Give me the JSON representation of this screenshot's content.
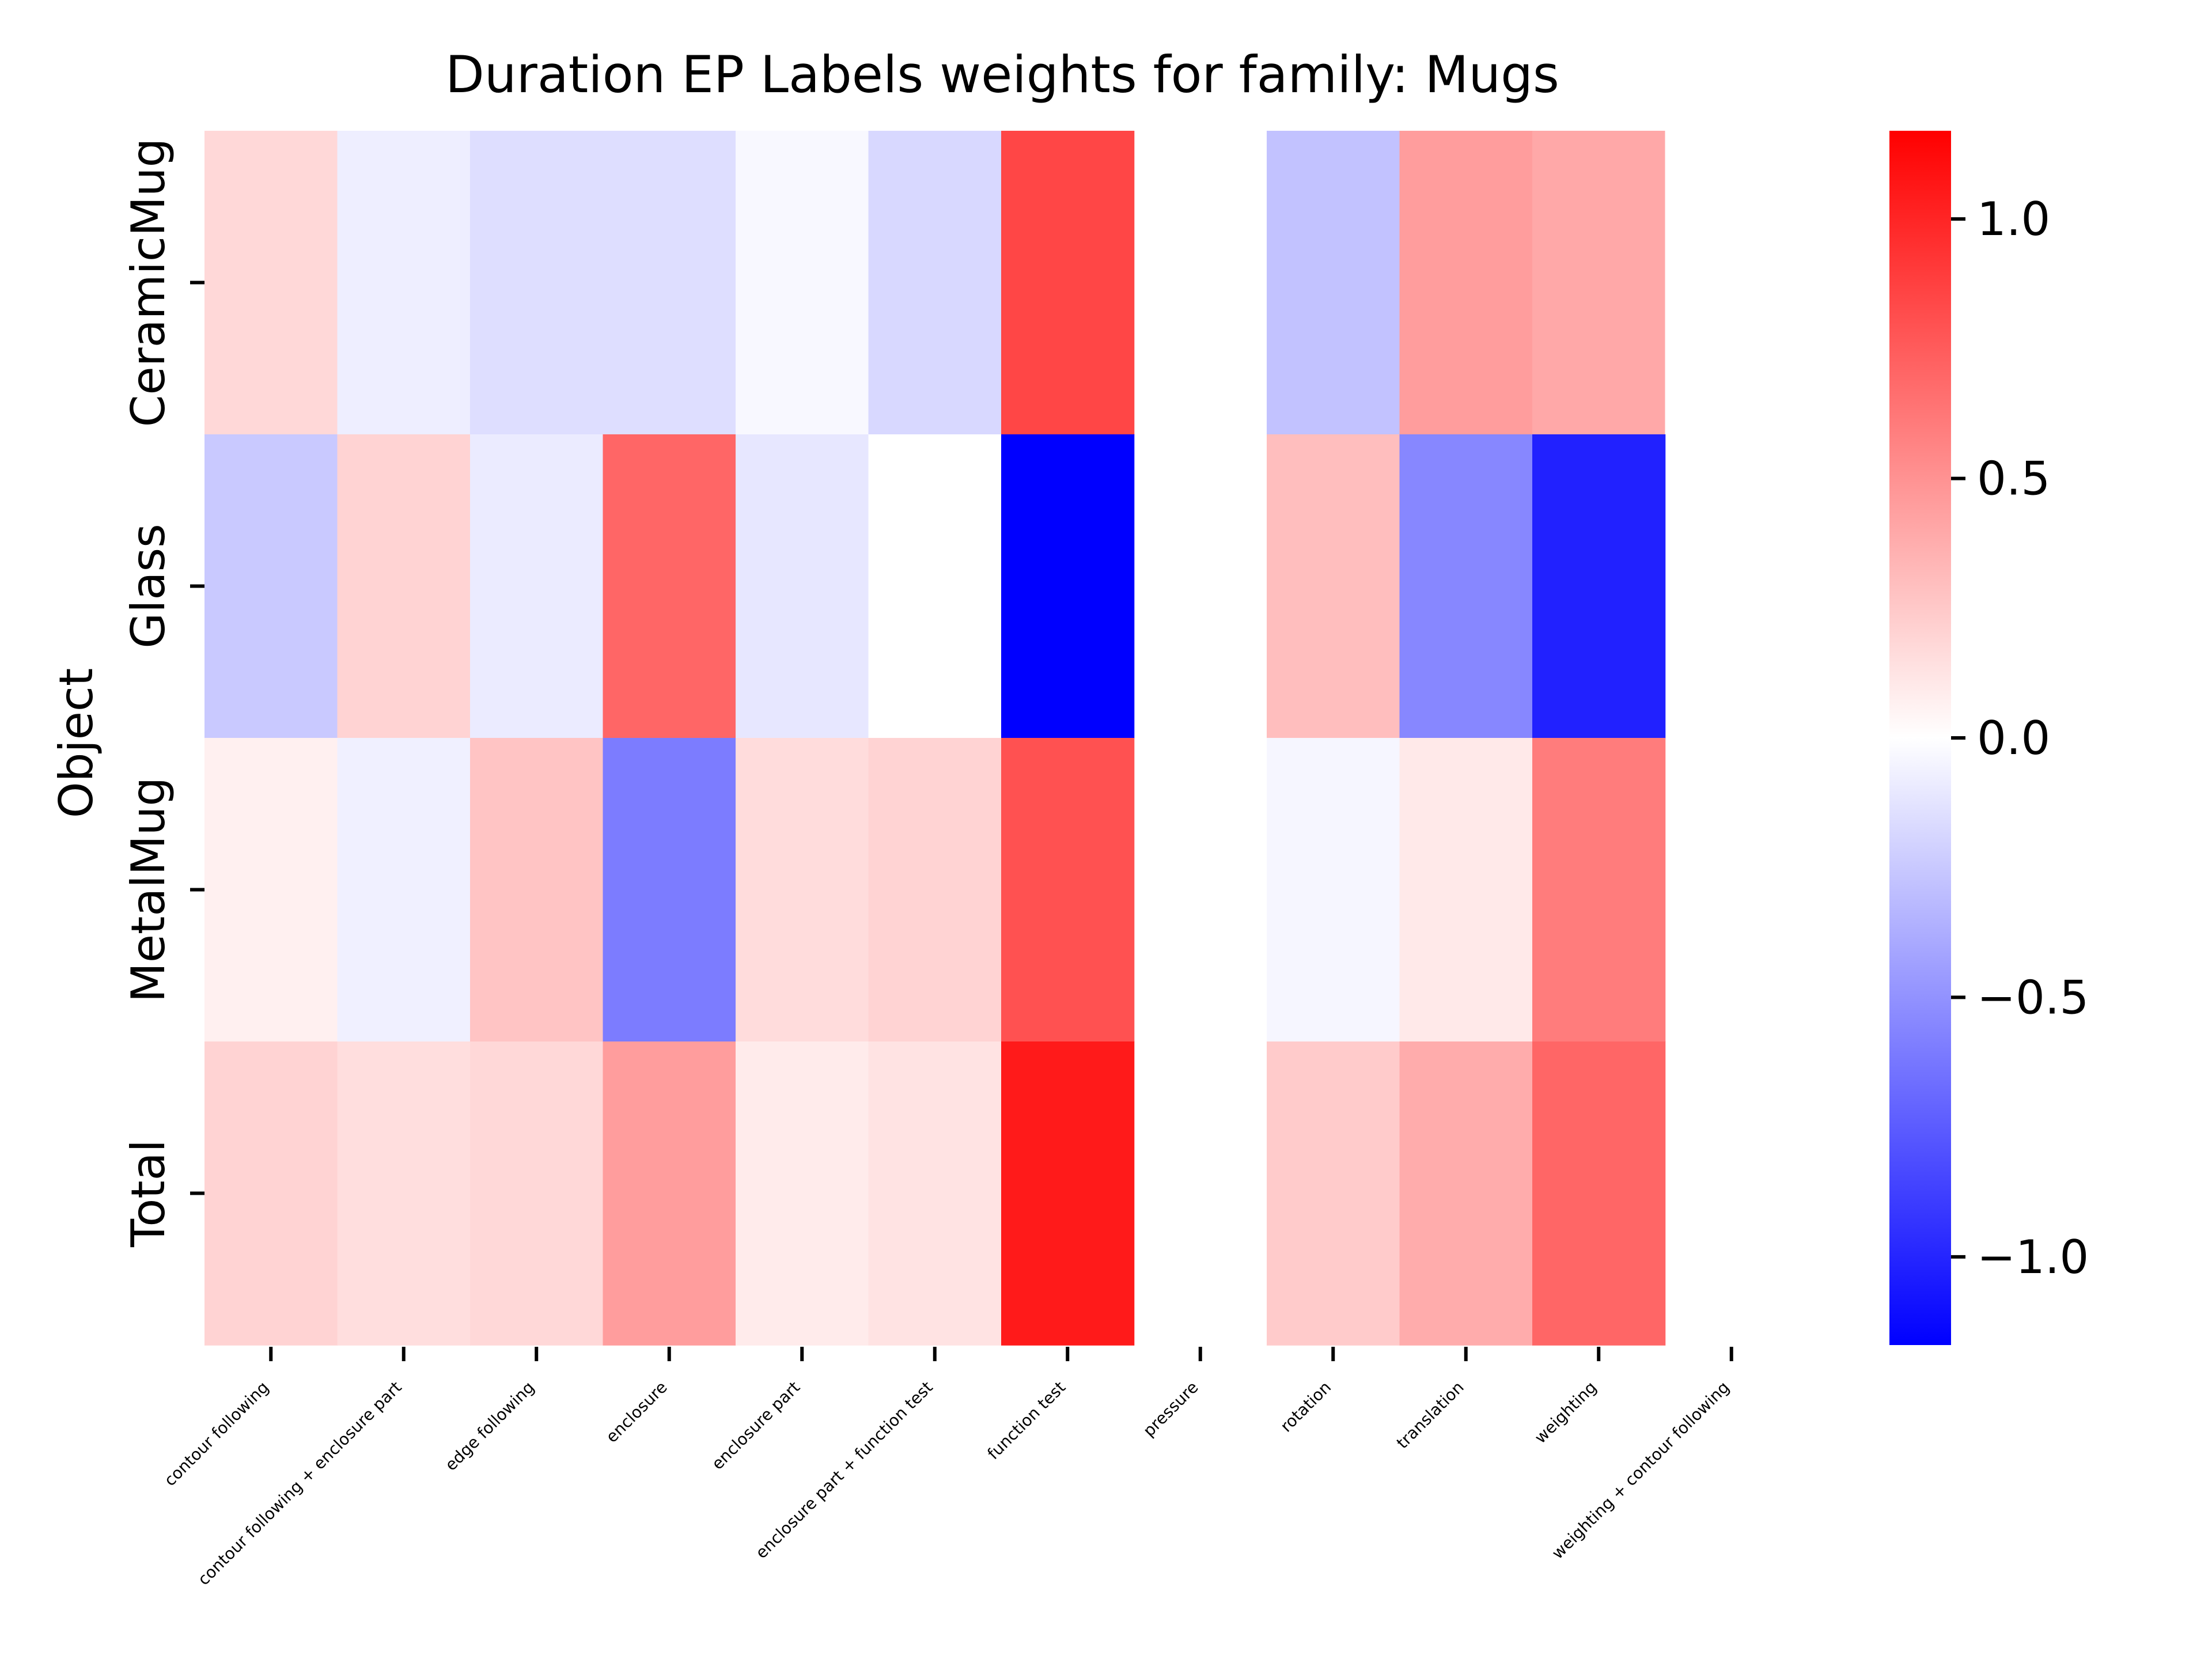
{
  "chart_data": {
    "type": "heatmap",
    "title": "Duration EP Labels weights for family: Mugs",
    "xlabel": "",
    "ylabel": "Object",
    "rows": [
      "CeramicMug",
      "Glass",
      "MetalMug",
      "Total"
    ],
    "columns": [
      "contour following",
      "contour following + enclosure part",
      "edge following",
      "enclosure",
      "enclosure part",
      "enclosure part + function test",
      "function test",
      "pressure",
      "rotation",
      "translation",
      "weighting",
      "weighting + contour following"
    ],
    "values": [
      [
        0.18,
        -0.08,
        -0.15,
        -0.15,
        -0.03,
        -0.18,
        0.85,
        null,
        -0.28,
        0.45,
        0.4,
        0.0
      ],
      [
        -0.25,
        0.2,
        -0.09,
        0.7,
        -0.11,
        0.0,
        -1.17,
        null,
        0.3,
        -0.55,
        -1.02,
        null
      ],
      [
        0.07,
        -0.07,
        0.27,
        -0.6,
        0.16,
        0.2,
        0.8,
        null,
        -0.04,
        0.1,
        0.6,
        null
      ],
      [
        0.2,
        0.15,
        0.18,
        0.45,
        0.09,
        0.13,
        1.05,
        null,
        0.24,
        0.38,
        0.7,
        null
      ]
    ],
    "colorbar": {
      "min": -1.17,
      "max": 1.17,
      "ticks": [
        1.0,
        0.5,
        0.0,
        -0.5,
        -1.0
      ],
      "tick_labels": [
        "1.0",
        "0.5",
        "0.0",
        "−0.5",
        "−1.0"
      ]
    },
    "colormap": {
      "low": "#0000ff",
      "mid": "#ffffff",
      "high": "#ff0000"
    },
    "grid": false
  }
}
